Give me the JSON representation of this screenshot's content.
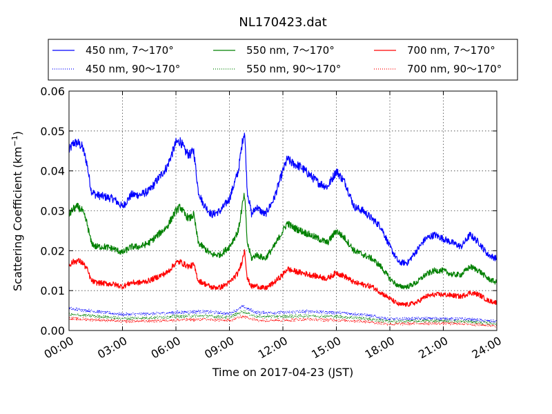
{
  "chart_data": {
    "type": "line",
    "title": "NL170423.dat",
    "xlabel": "Time on 2017-04-23 (JST)",
    "ylabel": "Scattering Coefficient (km",
    "ylabel_superscript": "−1",
    "ylabel_close": ")",
    "x_unit": "hours",
    "xlim": [
      0,
      24
    ],
    "ylim": [
      0,
      0.06
    ],
    "x_ticks": [
      0,
      3,
      6,
      9,
      12,
      15,
      18,
      21,
      24
    ],
    "x_tick_labels": [
      "00:00",
      "03:00",
      "06:00",
      "09:00",
      "12:00",
      "15:00",
      "18:00",
      "21:00",
      "24:00"
    ],
    "y_ticks": [
      0,
      0.01,
      0.02,
      0.03,
      0.04,
      0.05,
      0.06
    ],
    "y_tick_labels": [
      "0.00",
      "0.01",
      "0.02",
      "0.03",
      "0.04",
      "0.05",
      "0.06"
    ],
    "grid": true,
    "legend_position": "top (above plot)",
    "series": [
      {
        "name": "450 nm, 7～170°",
        "color": "#0000ff",
        "style": "solid",
        "x": [
          0.0,
          0.25,
          0.5,
          0.75,
          1.0,
          1.25,
          1.5,
          2.0,
          2.5,
          3.0,
          3.5,
          4.0,
          4.5,
          5.0,
          5.5,
          6.0,
          6.25,
          6.5,
          6.75,
          7.0,
          7.25,
          7.5,
          8.0,
          8.5,
          9.0,
          9.5,
          9.75,
          9.85,
          10.0,
          10.25,
          10.5,
          11.0,
          11.5,
          12.0,
          12.25,
          12.5,
          13.0,
          13.5,
          14.0,
          14.5,
          15.0,
          15.5,
          16.0,
          16.5,
          17.0,
          17.5,
          18.0,
          18.5,
          19.0,
          19.5,
          20.0,
          20.5,
          21.0,
          21.5,
          22.0,
          22.5,
          23.0,
          23.5,
          24.0
        ],
        "y": [
          0.045,
          0.047,
          0.047,
          0.046,
          0.042,
          0.035,
          0.034,
          0.0335,
          0.033,
          0.031,
          0.034,
          0.034,
          0.035,
          0.038,
          0.041,
          0.047,
          0.0475,
          0.045,
          0.044,
          0.045,
          0.035,
          0.032,
          0.029,
          0.03,
          0.033,
          0.04,
          0.048,
          0.05,
          0.035,
          0.029,
          0.031,
          0.029,
          0.033,
          0.04,
          0.043,
          0.042,
          0.041,
          0.039,
          0.037,
          0.036,
          0.04,
          0.037,
          0.031,
          0.03,
          0.028,
          0.026,
          0.021,
          0.017,
          0.017,
          0.02,
          0.023,
          0.024,
          0.023,
          0.022,
          0.021,
          0.024,
          0.022,
          0.019,
          0.018
        ]
      },
      {
        "name": "450 nm, 90～170°",
        "color": "#0000ff",
        "style": "dotted",
        "x": [
          0,
          1.5,
          3,
          4.5,
          6,
          7.5,
          9,
          9.75,
          10.5,
          12,
          13.5,
          15,
          16.5,
          18,
          19.5,
          21,
          22.5,
          24
        ],
        "y": [
          0.0055,
          0.0048,
          0.004,
          0.0042,
          0.0045,
          0.0048,
          0.0042,
          0.006,
          0.0045,
          0.0045,
          0.0048,
          0.0045,
          0.004,
          0.0028,
          0.003,
          0.003,
          0.0028,
          0.0022
        ]
      },
      {
        "name": "550 nm, 7～170°",
        "color": "#008000",
        "style": "solid",
        "x": [
          0.0,
          0.25,
          0.5,
          0.75,
          1.0,
          1.25,
          1.5,
          2.0,
          2.5,
          3.0,
          3.5,
          4.0,
          4.5,
          5.0,
          5.5,
          6.0,
          6.25,
          6.5,
          6.75,
          7.0,
          7.25,
          7.5,
          8.0,
          8.5,
          9.0,
          9.5,
          9.75,
          9.85,
          10.0,
          10.25,
          10.5,
          11.0,
          11.5,
          12.0,
          12.25,
          12.5,
          13.0,
          13.5,
          14.0,
          14.5,
          15.0,
          15.5,
          16.0,
          16.5,
          17.0,
          17.5,
          18.0,
          18.5,
          19.0,
          19.5,
          20.0,
          20.5,
          21.0,
          21.5,
          22.0,
          22.5,
          23.0,
          23.5,
          24.0
        ],
        "y": [
          0.029,
          0.0305,
          0.031,
          0.03,
          0.027,
          0.022,
          0.021,
          0.021,
          0.0205,
          0.0195,
          0.021,
          0.021,
          0.022,
          0.024,
          0.026,
          0.03,
          0.031,
          0.029,
          0.028,
          0.029,
          0.022,
          0.021,
          0.019,
          0.019,
          0.021,
          0.025,
          0.032,
          0.034,
          0.022,
          0.018,
          0.019,
          0.018,
          0.021,
          0.025,
          0.027,
          0.026,
          0.025,
          0.024,
          0.023,
          0.022,
          0.025,
          0.023,
          0.02,
          0.019,
          0.018,
          0.016,
          0.013,
          0.011,
          0.011,
          0.012,
          0.014,
          0.015,
          0.015,
          0.014,
          0.014,
          0.016,
          0.015,
          0.013,
          0.012
        ]
      },
      {
        "name": "550 nm, 90～170°",
        "color": "#008000",
        "style": "dotted",
        "x": [
          0,
          1.5,
          3,
          4.5,
          6,
          7.5,
          9,
          9.75,
          10.5,
          12,
          13.5,
          15,
          16.5,
          18,
          19.5,
          21,
          22.5,
          24
        ],
        "y": [
          0.004,
          0.0036,
          0.003,
          0.0032,
          0.0035,
          0.0037,
          0.0033,
          0.0048,
          0.0035,
          0.0035,
          0.0037,
          0.0035,
          0.0031,
          0.0022,
          0.0024,
          0.0024,
          0.0022,
          0.0017
        ]
      },
      {
        "name": "700 nm, 7～170°",
        "color": "#ff0000",
        "style": "solid",
        "x": [
          0.0,
          0.25,
          0.5,
          0.75,
          1.0,
          1.25,
          1.5,
          2.0,
          2.5,
          3.0,
          3.5,
          4.0,
          4.5,
          5.0,
          5.5,
          6.0,
          6.25,
          6.5,
          6.75,
          7.0,
          7.25,
          7.5,
          8.0,
          8.5,
          9.0,
          9.5,
          9.75,
          9.85,
          10.0,
          10.25,
          10.5,
          11.0,
          11.5,
          12.0,
          12.25,
          12.5,
          13.0,
          13.5,
          14.0,
          14.5,
          15.0,
          15.5,
          16.0,
          16.5,
          17.0,
          17.5,
          18.0,
          18.5,
          19.0,
          19.5,
          20.0,
          20.5,
          21.0,
          21.5,
          22.0,
          22.5,
          23.0,
          23.5,
          24.0
        ],
        "y": [
          0.0165,
          0.0172,
          0.0175,
          0.017,
          0.0155,
          0.0125,
          0.012,
          0.0118,
          0.0116,
          0.011,
          0.012,
          0.012,
          0.0125,
          0.0135,
          0.0145,
          0.017,
          0.0172,
          0.0165,
          0.016,
          0.0165,
          0.0125,
          0.012,
          0.0108,
          0.0108,
          0.012,
          0.0145,
          0.018,
          0.0205,
          0.013,
          0.011,
          0.0112,
          0.0105,
          0.012,
          0.014,
          0.0155,
          0.015,
          0.0145,
          0.014,
          0.0135,
          0.013,
          0.0145,
          0.0135,
          0.012,
          0.0115,
          0.011,
          0.0095,
          0.008,
          0.0065,
          0.0065,
          0.007,
          0.0085,
          0.009,
          0.009,
          0.0088,
          0.0085,
          0.0095,
          0.009,
          0.0075,
          0.007
        ]
      },
      {
        "name": "700 nm, 90～170°",
        "color": "#ff0000",
        "style": "dotted",
        "x": [
          0,
          1.5,
          3,
          4.5,
          6,
          7.5,
          9,
          9.75,
          10.5,
          12,
          13.5,
          15,
          16.5,
          18,
          19.5,
          21,
          22.5,
          24
        ],
        "y": [
          0.003,
          0.0027,
          0.0023,
          0.0024,
          0.0026,
          0.0028,
          0.0025,
          0.0036,
          0.0026,
          0.0026,
          0.0028,
          0.0026,
          0.0023,
          0.0016,
          0.0018,
          0.0018,
          0.0016,
          0.0012
        ]
      }
    ]
  }
}
